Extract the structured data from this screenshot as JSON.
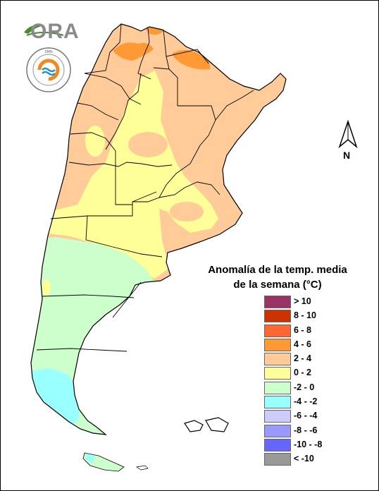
{
  "branding": {
    "logo_text": "ORA",
    "seal_text": "SERVICIO METEOROLÓGICO NACIONAL · ARGENTINA"
  },
  "map": {
    "subject": "Argentina",
    "north_label": "N"
  },
  "legend": {
    "title_line1": "Anomalía de la temp. media",
    "title_line2": "de la semana (°C)",
    "items": [
      {
        "label": "> 10",
        "color": "#993366"
      },
      {
        "label": "8 - 10",
        "color": "#cc3300"
      },
      {
        "label": "6 - 8",
        "color": "#ff6633"
      },
      {
        "label": "4 - 6",
        "color": "#ff9933"
      },
      {
        "label": "2 - 4",
        "color": "#ffcc99"
      },
      {
        "label": "0 - 2",
        "color": "#ffff99"
      },
      {
        "label": "-2 - 0",
        "color": "#ccffcc"
      },
      {
        "label": "-4 - -2",
        "color": "#99ffff"
      },
      {
        "label": "-6 - -4",
        "color": "#ccccff"
      },
      {
        "label": "-8 - -6",
        "color": "#9999ff"
      },
      {
        "label": "-10 - -8",
        "color": "#6666ff"
      },
      {
        "label": "< -10",
        "color": "#999999"
      }
    ]
  }
}
